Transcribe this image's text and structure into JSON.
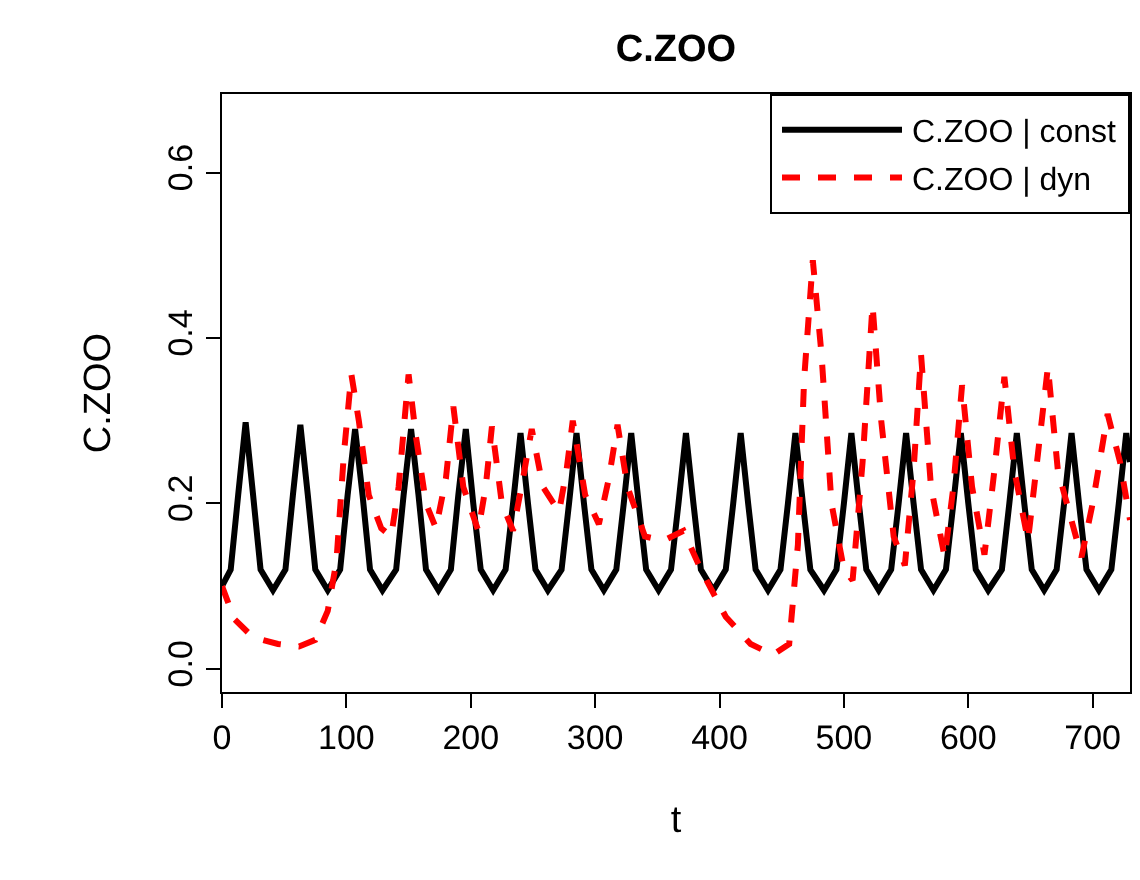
{
  "chart_data": {
    "type": "line",
    "title": "C.ZOO",
    "xlabel": "t",
    "ylabel": "C.ZOO",
    "xlim": [
      0,
      730
    ],
    "ylim": [
      -0.028,
      0.695
    ],
    "xticks": [
      0,
      100,
      200,
      300,
      400,
      500,
      600,
      700
    ],
    "yticks": [
      {
        "value": 0,
        "label": "0.0"
      },
      {
        "value": 0.2,
        "label": "0.2"
      },
      {
        "value": 0.4,
        "label": "0.4"
      },
      {
        "value": 0.6,
        "label": "0.6"
      }
    ],
    "grid": false,
    "legend": "top right",
    "series": [
      {
        "name": "C.ZOO | const",
        "color": "#000000",
        "line_style": "solid",
        "x": [
          0,
          7,
          13,
          19,
          25,
          31,
          41,
          51,
          57,
          63,
          69,
          75,
          85,
          95,
          101,
          107,
          113,
          119,
          129,
          140,
          146,
          152,
          158,
          164,
          174,
          184,
          190,
          196,
          202,
          208,
          218,
          228,
          234,
          240,
          246,
          252,
          262,
          273,
          279,
          285,
          291,
          297,
          307,
          317,
          323,
          329,
          335,
          341,
          351,
          361,
          367,
          373,
          379,
          385,
          395,
          405,
          411,
          417,
          423,
          429,
          439,
          449,
          455,
          461,
          467,
          473,
          484,
          494,
          500,
          506,
          512,
          518,
          528,
          538,
          544,
          550,
          556,
          562,
          572,
          582,
          588,
          594,
          600,
          606,
          616,
          627,
          633,
          639,
          645,
          651,
          661,
          671,
          677,
          683,
          689,
          695,
          705,
          715,
          721,
          727,
          730
        ],
        "values": [
          0.1,
          0.12,
          0.21,
          0.298,
          0.21,
          0.12,
          0.095,
          0.12,
          0.21,
          0.295,
          0.21,
          0.12,
          0.095,
          0.12,
          0.21,
          0.29,
          0.21,
          0.12,
          0.095,
          0.12,
          0.21,
          0.29,
          0.21,
          0.12,
          0.095,
          0.12,
          0.21,
          0.29,
          0.2,
          0.12,
          0.095,
          0.12,
          0.2,
          0.285,
          0.2,
          0.12,
          0.095,
          0.12,
          0.2,
          0.285,
          0.2,
          0.12,
          0.095,
          0.12,
          0.2,
          0.285,
          0.2,
          0.12,
          0.095,
          0.12,
          0.2,
          0.285,
          0.2,
          0.12,
          0.095,
          0.12,
          0.2,
          0.285,
          0.2,
          0.12,
          0.095,
          0.12,
          0.2,
          0.285,
          0.2,
          0.12,
          0.095,
          0.12,
          0.2,
          0.285,
          0.2,
          0.12,
          0.095,
          0.12,
          0.2,
          0.285,
          0.2,
          0.12,
          0.095,
          0.12,
          0.2,
          0.285,
          0.2,
          0.12,
          0.095,
          0.12,
          0.2,
          0.285,
          0.2,
          0.12,
          0.095,
          0.12,
          0.2,
          0.285,
          0.2,
          0.12,
          0.095,
          0.12,
          0.2,
          0.285,
          0.25
        ]
      },
      {
        "name": "C.ZOO | dyn",
        "color": "#ff0000",
        "line_style": "dashed",
        "x": [
          0,
          10,
          25,
          45,
          62,
          75,
          85,
          92,
          98,
          104,
          110,
          118,
          128,
          136,
          142,
          150,
          156,
          164,
          172,
          180,
          186,
          194,
          206,
          212,
          217,
          225,
          234,
          242,
          249,
          258,
          271,
          277,
          282,
          292,
          303,
          311,
          318,
          326,
          340,
          355,
          371,
          385,
          405,
          425,
          443,
          456,
          463,
          468,
          475,
          482,
          490,
          500,
          507,
          515,
          523,
          530,
          540,
          549,
          556,
          562,
          570,
          581,
          588,
          595,
          603,
          613,
          621,
          629,
          637,
          648,
          656,
          664,
          672,
          691,
          700,
          712,
          722,
          730
        ],
        "values": [
          0.1,
          0.06,
          0.038,
          0.03,
          0.027,
          0.035,
          0.07,
          0.13,
          0.26,
          0.356,
          0.3,
          0.21,
          0.17,
          0.16,
          0.22,
          0.356,
          0.28,
          0.2,
          0.17,
          0.23,
          0.317,
          0.22,
          0.167,
          0.22,
          0.293,
          0.2,
          0.167,
          0.23,
          0.29,
          0.22,
          0.19,
          0.24,
          0.3,
          0.21,
          0.175,
          0.23,
          0.295,
          0.22,
          0.16,
          0.155,
          0.167,
          0.12,
          0.063,
          0.03,
          0.017,
          0.03,
          0.15,
          0.35,
          0.494,
          0.38,
          0.2,
          0.12,
          0.107,
          0.25,
          0.44,
          0.3,
          0.16,
          0.125,
          0.24,
          0.38,
          0.22,
          0.135,
          0.22,
          0.343,
          0.22,
          0.138,
          0.24,
          0.353,
          0.24,
          0.155,
          0.26,
          0.365,
          0.24,
          0.135,
          0.2,
          0.308,
          0.25,
          0.18
        ]
      }
    ]
  }
}
